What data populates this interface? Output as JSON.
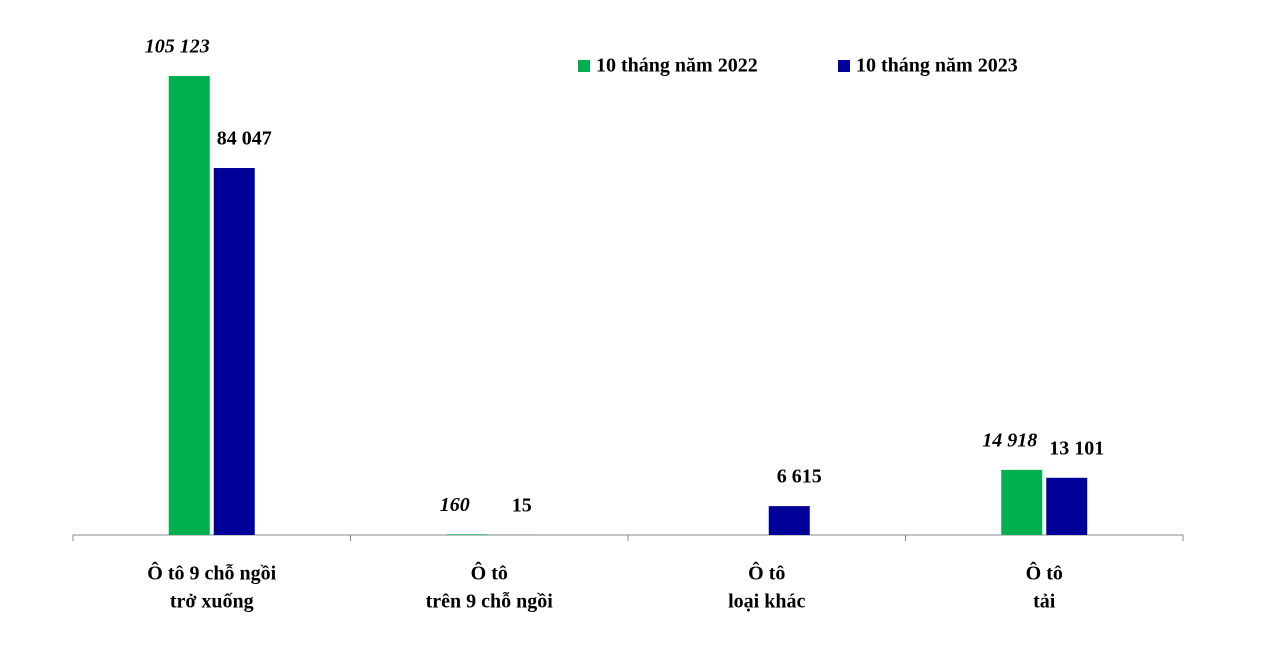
{
  "chart_data": {
    "type": "bar",
    "categories": [
      [
        "Ô tô 9 chỗ ngồi",
        "trở xuống"
      ],
      [
        "Ô tô",
        "trên 9 chỗ ngồi"
      ],
      [
        "Ô tô",
        "loại khác"
      ],
      [
        "Ô tô",
        "tải"
      ]
    ],
    "series": [
      {
        "name": "10 tháng năm 2022",
        "color": "#00b050",
        "values": [
          105123,
          160,
          null,
          14918
        ],
        "value_labels": [
          "105 123",
          "160",
          null,
          "14 918"
        ]
      },
      {
        "name": "10 tháng năm 2023",
        "color": "#000099",
        "values": [
          84047,
          15,
          6615,
          13101
        ],
        "value_labels": [
          "84 047",
          "15",
          "6 615",
          "13 101"
        ]
      }
    ],
    "legend": "top-right"
  }
}
